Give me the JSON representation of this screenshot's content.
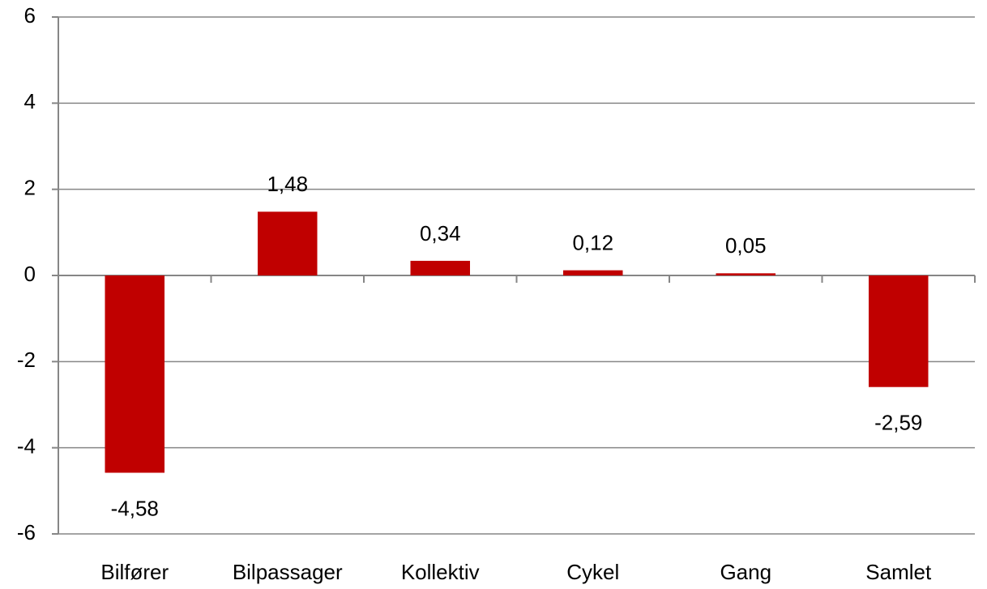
{
  "chart_data": {
    "type": "bar",
    "categories": [
      "Bilfører",
      "Bilpassager",
      "Kollektiv",
      "Cykel",
      "Gang",
      "Samlet"
    ],
    "values": [
      -4.58,
      1.48,
      0.34,
      0.12,
      0.05,
      -2.59
    ],
    "value_labels": [
      "-4,58",
      "1,48",
      "0,34",
      "0,12",
      "0,05",
      "-2,59"
    ],
    "color": "#c00000",
    "ylim": [
      -6,
      6
    ],
    "yticks": [
      -6,
      -4,
      -2,
      0,
      2,
      4,
      6
    ],
    "grid": true
  }
}
